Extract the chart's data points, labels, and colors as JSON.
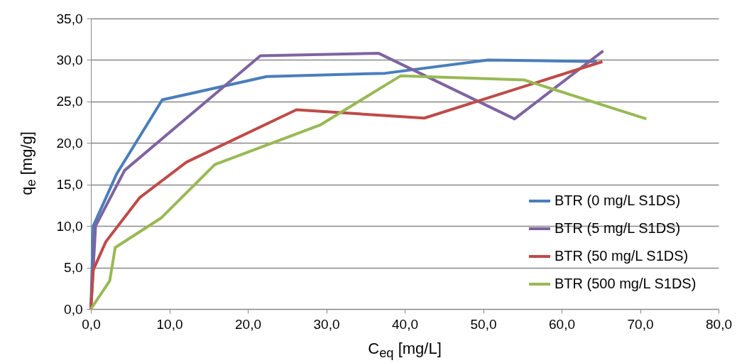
{
  "chart_data": {
    "type": "line",
    "xlabel": "C$_{eq}$ [mg/L]",
    "ylabel": "q$_{e}$ [mg/g]",
    "xlim": [
      0,
      80
    ],
    "ylim": [
      0,
      35
    ],
    "xticks": [
      {
        "value": 0,
        "label": "0,0"
      },
      {
        "value": 10,
        "label": "10,0"
      },
      {
        "value": 20,
        "label": "20,0"
      },
      {
        "value": 30,
        "label": "30,0"
      },
      {
        "value": 40,
        "label": "40,0"
      },
      {
        "value": 50,
        "label": "50,0"
      },
      {
        "value": 60,
        "label": "60,0"
      },
      {
        "value": 70,
        "label": "70,0"
      },
      {
        "value": 80,
        "label": "80,0"
      }
    ],
    "yticks": [
      {
        "value": 0,
        "label": "0,0"
      },
      {
        "value": 5,
        "label": "5,0"
      },
      {
        "value": 10,
        "label": "10,0"
      },
      {
        "value": 15,
        "label": "15,0"
      },
      {
        "value": 20,
        "label": "20,0"
      },
      {
        "value": 25,
        "label": "25,0"
      },
      {
        "value": 30,
        "label": "30,0"
      },
      {
        "value": 35,
        "label": "35,0"
      }
    ],
    "grid": "y",
    "legend": "bottom right",
    "marker": "none",
    "line_style": "solid",
    "series": [
      {
        "name": "BTR  (0 mg/L S1DS)",
        "color": "#4a7ebb",
        "x": [
          0,
          0.3,
          3.3,
          9.1,
          22.4,
          37.5,
          50.6,
          64.5
        ],
        "values": [
          0,
          10.0,
          16.3,
          25.2,
          28.0,
          28.4,
          30.0,
          29.8
        ]
      },
      {
        "name": "BTR  (5 mg/L S1DS)",
        "color": "#7f63a1",
        "x": [
          0,
          0.6,
          4.3,
          21.6,
          36.7,
          54.0,
          65.3
        ],
        "values": [
          0,
          10.0,
          16.7,
          30.5,
          30.8,
          22.9,
          31.1
        ]
      },
      {
        "name": "BTR  (50 mg/L S1DS)",
        "color": "#be4b48",
        "x": [
          0,
          0.3,
          1.9,
          6.2,
          12.2,
          26.2,
          42.5,
          65.2
        ],
        "values": [
          0,
          4.7,
          8.1,
          13.4,
          17.7,
          24.0,
          23.0,
          29.8
        ]
      },
      {
        "name": "BTR  (500 mg/L S1DS)",
        "color": "#98b954",
        "x": [
          0,
          2.4,
          3.1,
          9.0,
          15.8,
          29.3,
          39.5,
          55.2,
          70.8
        ],
        "values": [
          0,
          3.4,
          7.4,
          11.0,
          17.4,
          22.2,
          28.1,
          27.6,
          22.9
        ]
      }
    ]
  }
}
